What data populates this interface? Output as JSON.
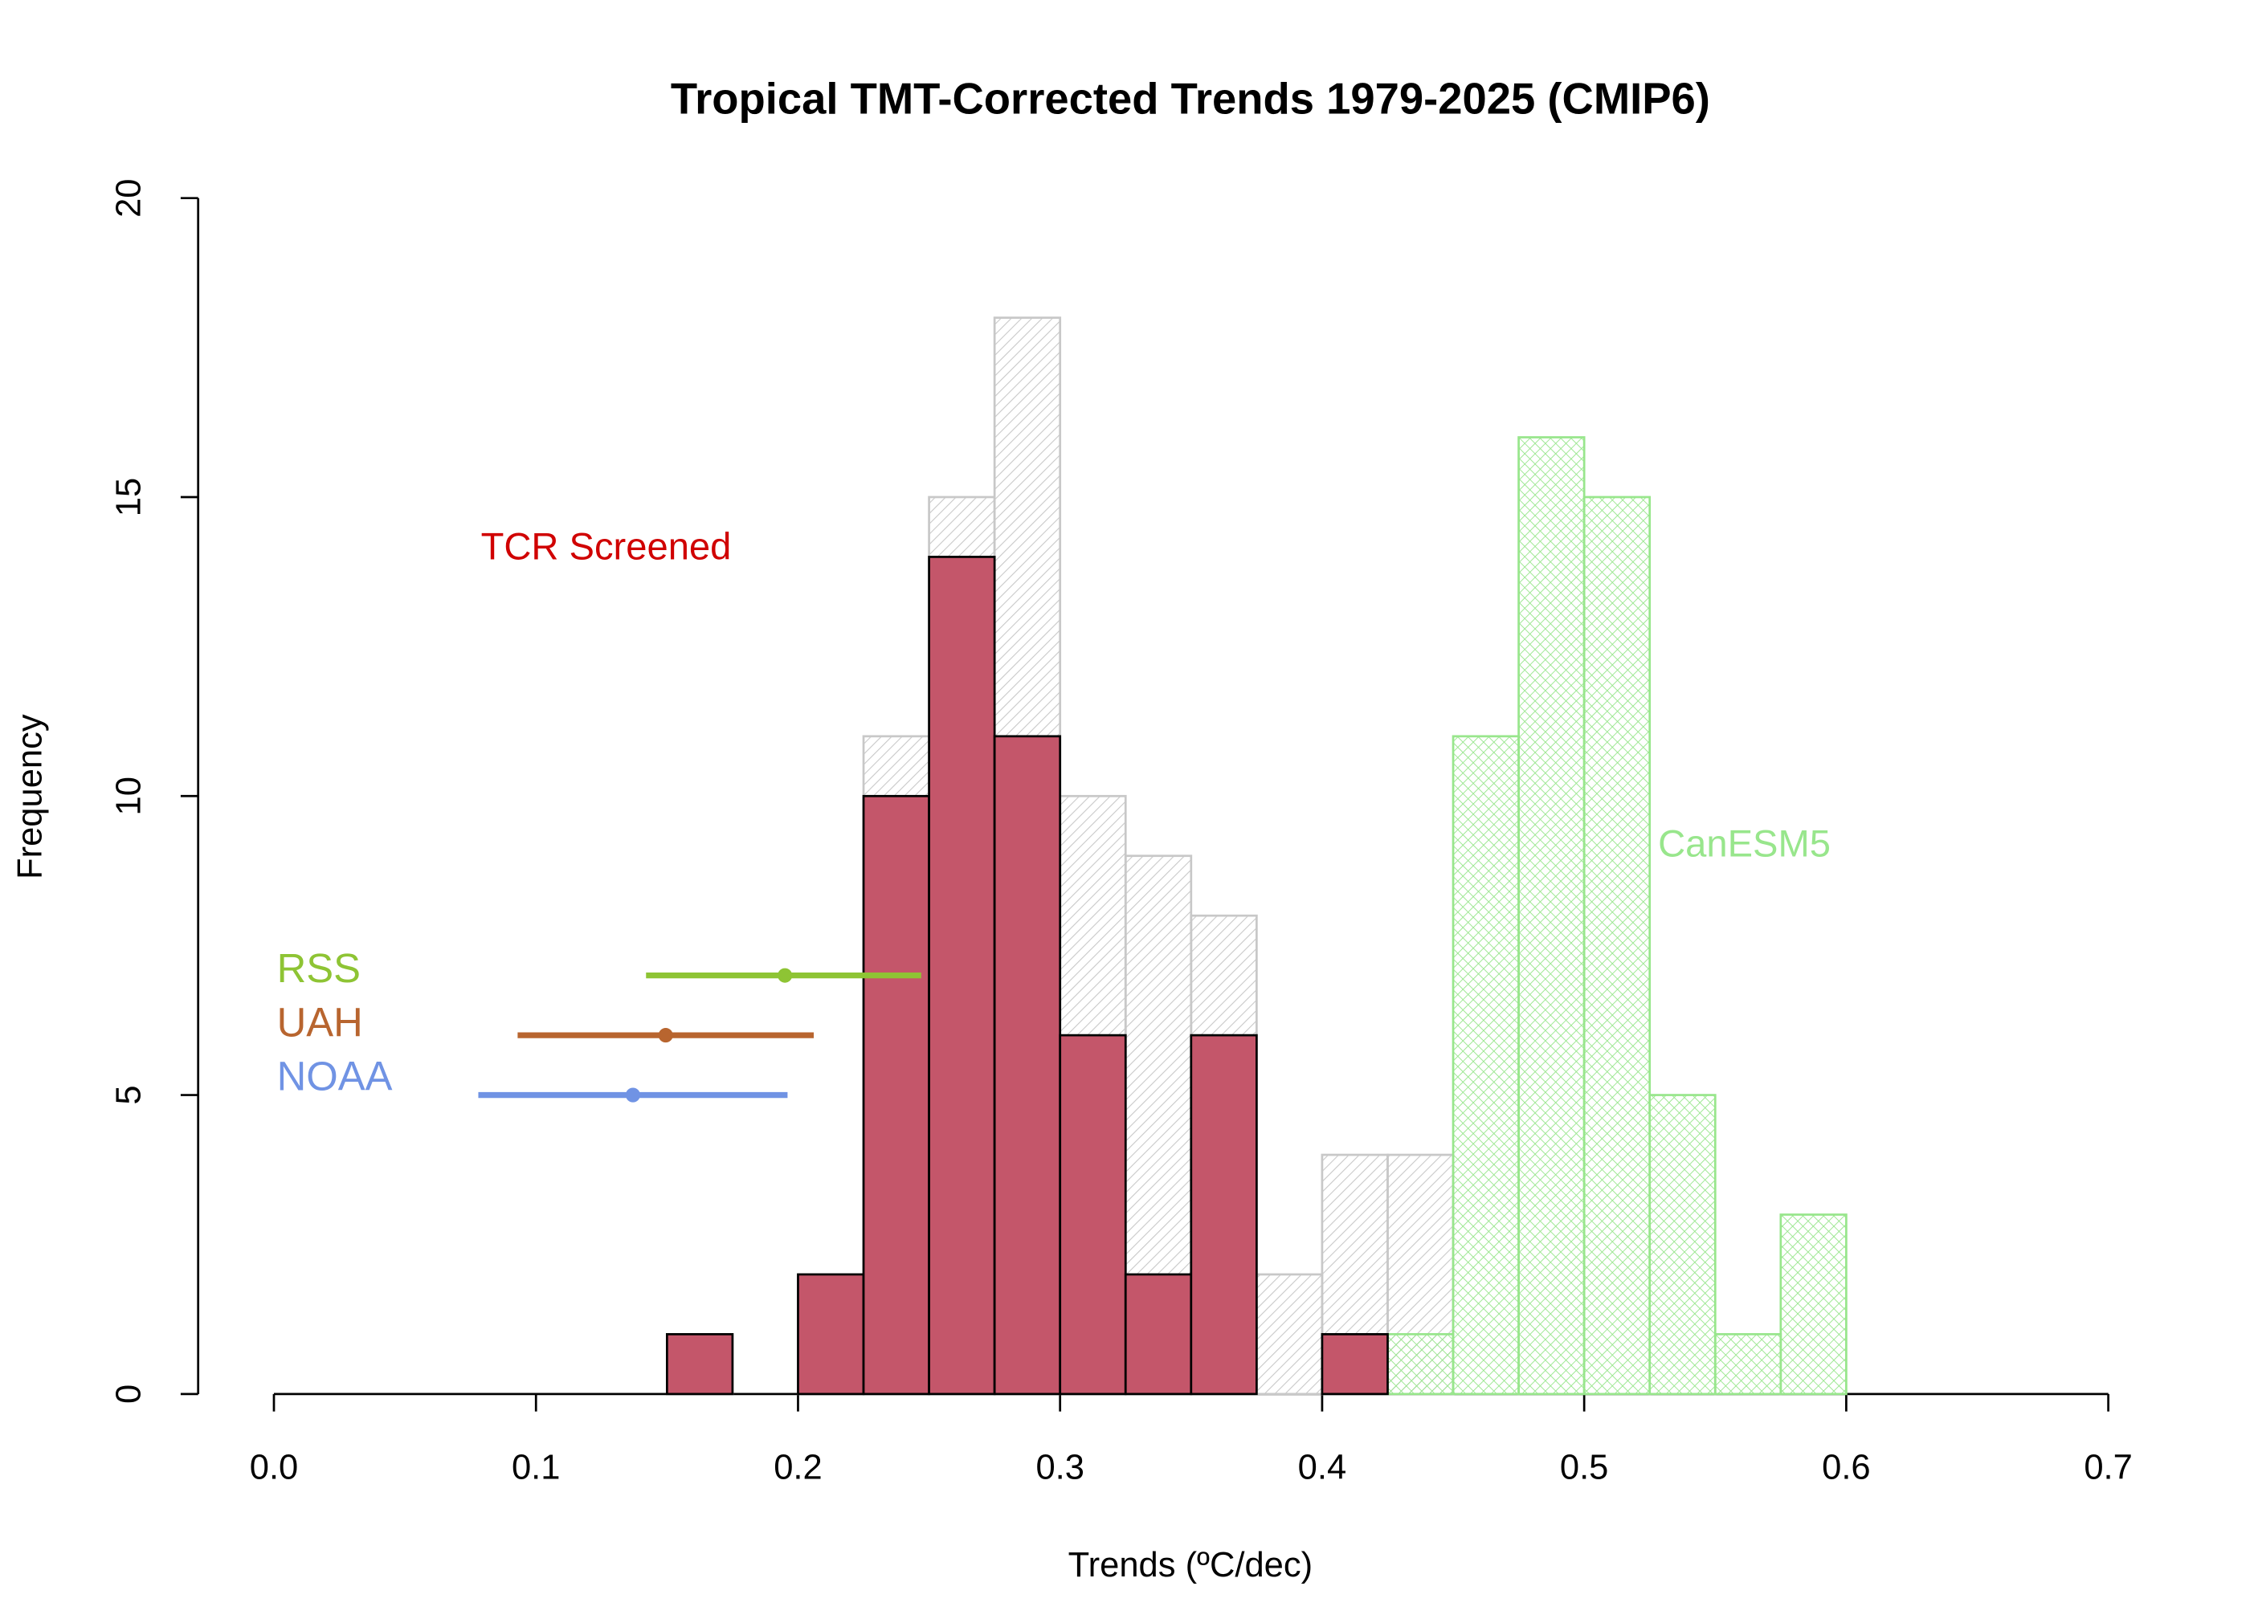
{
  "chart_data": {
    "type": "histogram",
    "title": "Tropical TMT-Corrected Trends 1979-2025 (CMIP6)",
    "x_label": "Trends (ºC/dec)",
    "y_label": "Frequency",
    "bins": [
      0.15,
      0.175,
      0.2,
      0.225,
      0.25,
      0.275,
      0.3,
      0.325,
      0.35,
      0.375,
      0.4,
      0.425,
      0.45,
      0.475,
      0.5,
      0.525,
      0.55,
      0.575,
      0.6
    ],
    "series": [
      {
        "color": "#c8c8c8",
        "hatch": "diagonal",
        "values": [
          1,
          0,
          2,
          11,
          15,
          18,
          10,
          9,
          8,
          2,
          4,
          4,
          0,
          0,
          0,
          0,
          0,
          0
        ]
      },
      {
        "name": "CanESM5",
        "color": "#98e68c",
        "hatch": "cross",
        "values": [
          0,
          0,
          0,
          0,
          0,
          0,
          0,
          0,
          0,
          0,
          0,
          1,
          11,
          16,
          15,
          5,
          1,
          3
        ]
      },
      {
        "name": "TCR Screened",
        "color": "#c4566a",
        "label_color": "#d00000",
        "hatch": "none",
        "values": [
          1,
          0,
          2,
          10,
          14,
          11,
          6,
          2,
          6,
          0,
          1,
          0,
          0,
          0,
          0,
          0,
          0,
          0
        ]
      }
    ],
    "observations": [
      {
        "name": "RSS",
        "color": "#8ec434",
        "x": 0.195,
        "xmin": 0.142,
        "xmax": 0.247,
        "y": 7
      },
      {
        "name": "UAH",
        "color": "#b8652f",
        "x": 0.1495,
        "xmin": 0.093,
        "xmax": 0.206,
        "y": 6
      },
      {
        "name": "NOAA",
        "color": "#7093e4",
        "x": 0.137,
        "xmin": 0.078,
        "xmax": 0.196,
        "y": 5
      }
    ],
    "xlim": [
      0,
      0.7
    ],
    "xticks": [
      {
        "value": 0,
        "label": "0.0"
      },
      0.1,
      0.2,
      0.3,
      0.4,
      0.5,
      0.6,
      0.7
    ],
    "ylim": [
      0,
      20
    ],
    "yticks": [
      0,
      5,
      10,
      15,
      20
    ]
  }
}
